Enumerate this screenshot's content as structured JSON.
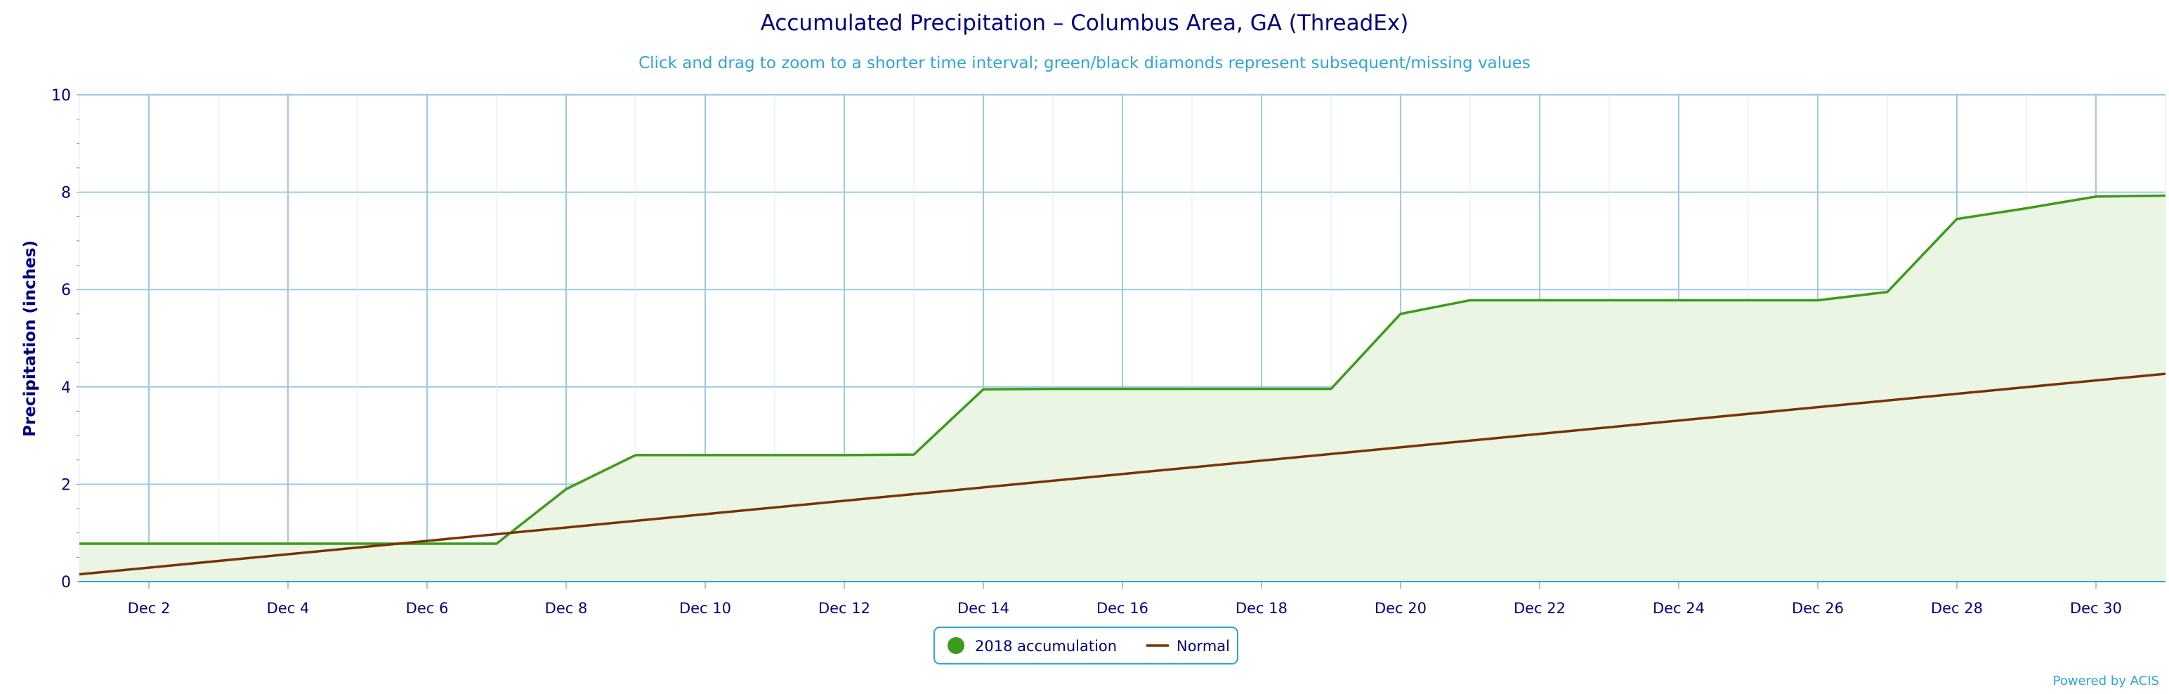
{
  "chart_data": {
    "type": "line",
    "title": "Accumulated Precipitation – Columbus Area, GA (ThreadEx)",
    "subtitle": "Click and drag to zoom to a shorter time interval; green/black diamonds represent subsequent/missing values",
    "ylabel": "Precipitation (inches)",
    "xlabel": "",
    "ylim": [
      0,
      10
    ],
    "xlim": [
      1,
      31
    ],
    "yticks": [
      0,
      2,
      4,
      6,
      8,
      10
    ],
    "xticks": [
      {
        "x": 2,
        "label": "Dec 2"
      },
      {
        "x": 4,
        "label": "Dec 4"
      },
      {
        "x": 6,
        "label": "Dec 6"
      },
      {
        "x": 8,
        "label": "Dec 8"
      },
      {
        "x": 10,
        "label": "Dec 10"
      },
      {
        "x": 12,
        "label": "Dec 12"
      },
      {
        "x": 14,
        "label": "Dec 14"
      },
      {
        "x": 16,
        "label": "Dec 16"
      },
      {
        "x": 18,
        "label": "Dec 18"
      },
      {
        "x": 20,
        "label": "Dec 20"
      },
      {
        "x": 22,
        "label": "Dec 22"
      },
      {
        "x": 24,
        "label": "Dec 24"
      },
      {
        "x": 26,
        "label": "Dec 26"
      },
      {
        "x": 28,
        "label": "Dec 28"
      },
      {
        "x": 30,
        "label": "Dec 30"
      }
    ],
    "grid": true,
    "legend_position": "bottom-center",
    "series": [
      {
        "name": "2018 accumulation",
        "color": "#3c9c1a",
        "fill": "#ebf5e4",
        "area": true,
        "x": [
          1,
          2,
          3,
          4,
          5,
          6,
          7,
          8,
          9,
          10,
          11,
          12,
          13,
          14,
          15,
          16,
          17,
          18,
          19,
          20,
          21,
          22,
          23,
          24,
          25,
          26,
          27,
          28,
          29,
          30,
          31
        ],
        "values": [
          0.78,
          0.78,
          0.78,
          0.78,
          0.78,
          0.78,
          0.78,
          1.9,
          2.6,
          2.6,
          2.6,
          2.6,
          2.61,
          3.95,
          3.96,
          3.96,
          3.96,
          3.96,
          3.96,
          5.5,
          5.78,
          5.78,
          5.78,
          5.78,
          5.78,
          5.78,
          5.95,
          7.45,
          7.67,
          7.91,
          7.93
        ]
      },
      {
        "name": "Normal",
        "color": "#7a3306",
        "area": false,
        "x": [
          1,
          31
        ],
        "values": [
          0.15,
          4.27
        ]
      }
    ],
    "credit": "Powered by ACIS"
  }
}
